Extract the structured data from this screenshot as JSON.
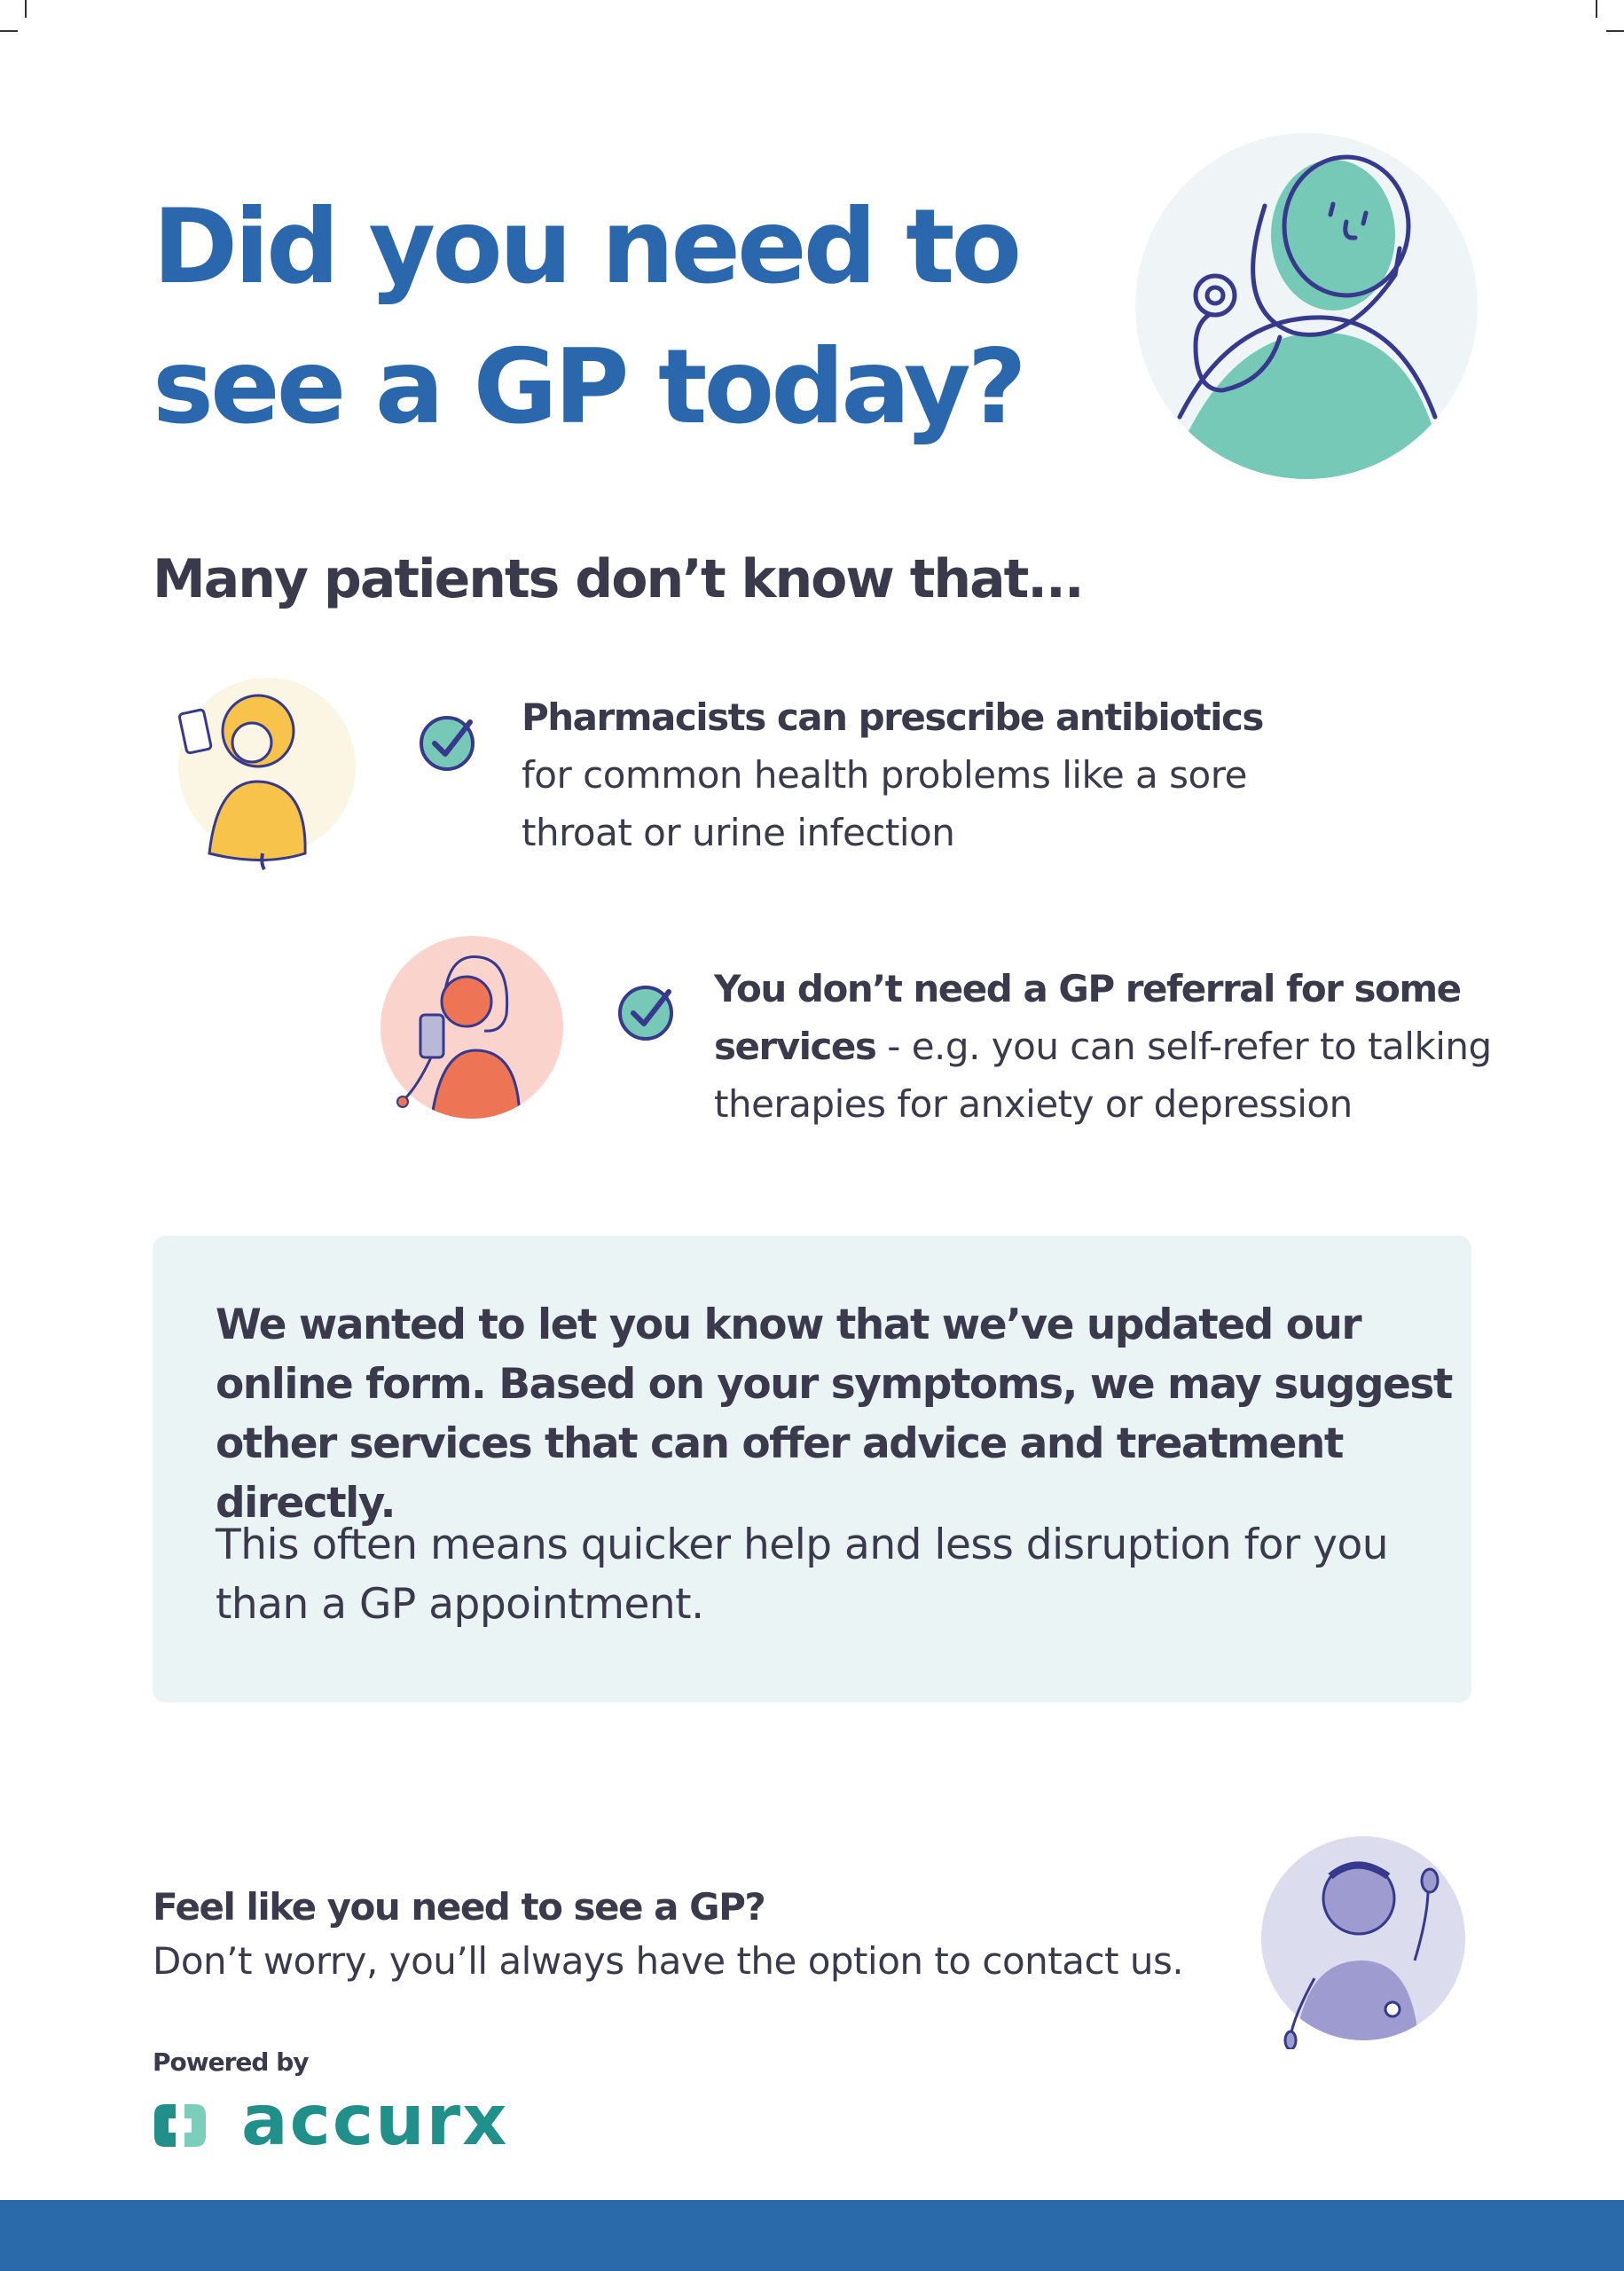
{
  "header": {
    "title_line1": "Did you need to",
    "title_line2": "see a GP today?"
  },
  "subtitle": "Many patients don’t know that...",
  "items": [
    {
      "bold": "Pharmacists can prescribe antibiotics",
      "line2": "for common health problems like a sore",
      "line3": "throat or urine infection"
    },
    {
      "bold1": "You don’t need a GP referral for some",
      "bold2": "services",
      "rest2": " - e.g. you can self-refer to talking",
      "line3": "therapies for anxiety or depression"
    }
  ],
  "notice": {
    "bold": "We wanted to let you know that we’ve updated our online form. Based on your symptoms, we may suggest other services that can offer advice and treatment directly.",
    "regular": "This often means quicker help and less disruption for you than a GP appointment."
  },
  "footer": {
    "question": "Feel like you need to see a GP?",
    "answer": "Don’t worry, you’ll always have the option to contact us.",
    "powered_by": "Powered by",
    "logo": "accurx"
  },
  "colors": {
    "title_blue": "#2a67ac",
    "text": "#3b3a4c",
    "teal": "#21908a",
    "band": "#2a6aab",
    "box": "#eaf4f4"
  },
  "icons": [
    "doctor-stethoscope-illustration",
    "pharmacist-illustration",
    "woman-phone-illustration",
    "check-circle-icon",
    "waving-doctor-illustration",
    "accurx-logo-icon"
  ]
}
